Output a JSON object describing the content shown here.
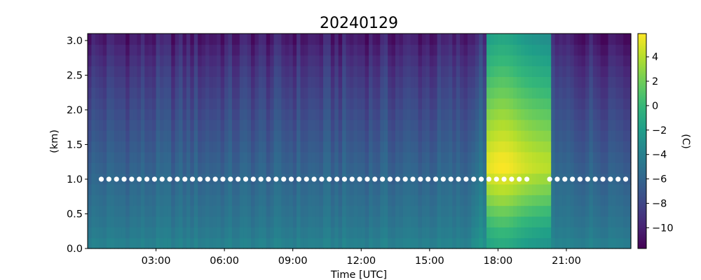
{
  "chart_data": {
    "type": "heatmap",
    "title": "20240129",
    "xlabel": "Time [UTC]",
    "ylabel": "(km)",
    "colorbar_label": "(C)",
    "x_unit": "hours UTC",
    "xlim": [
      0,
      23.83
    ],
    "ylim": [
      0,
      3.1
    ],
    "x_ticks": [
      3,
      6,
      9,
      12,
      15,
      18,
      21
    ],
    "x_tick_labels": [
      "03:00",
      "06:00",
      "09:00",
      "12:00",
      "15:00",
      "18:00",
      "21:00"
    ],
    "y_ticks": [
      0,
      0.5,
      1,
      1.5,
      2,
      2.5,
      3
    ],
    "y_tick_labels": [
      "0.0",
      "0.5",
      "1.0",
      "1.5",
      "2.0",
      "2.5",
      "3.0"
    ],
    "colorbar": {
      "colormap": "viridis",
      "vmin": -11.7,
      "vmax": 5.9,
      "ticks": [
        4,
        2,
        0,
        -2,
        -4,
        -6,
        -8,
        -10
      ],
      "tick_labels": [
        "4",
        "2",
        "0",
        "−2",
        "−4",
        "−6",
        "−8",
        "−10"
      ]
    },
    "grid": false,
    "background_profile": {
      "heights_km": [
        0.0,
        0.1,
        0.3,
        0.5,
        0.8,
        1.0,
        1.3,
        1.6,
        2.0,
        2.3,
        2.6,
        2.9,
        3.1
      ],
      "temperature_c": [
        -3.8,
        -4.0,
        -4.6,
        -5.0,
        -5.5,
        -5.9,
        -6.4,
        -7.0,
        -7.7,
        -8.3,
        -9.0,
        -9.9,
        -10.6
      ]
    },
    "warm_episode": {
      "start_hour": 17.5,
      "end_hour": 20.4,
      "peak_hour": 18.2,
      "peak_temperature_c": 5.2,
      "peak_height_km": 1.2,
      "top_temperature_c": -2.3
    },
    "marker_series": {
      "name": "",
      "height_km": 1.0,
      "color": "#ffffff",
      "interval_minutes": 20,
      "start_hour": 0.6,
      "end_hour": 23.8,
      "gap_hours": [
        19.5,
        20.0
      ]
    }
  }
}
